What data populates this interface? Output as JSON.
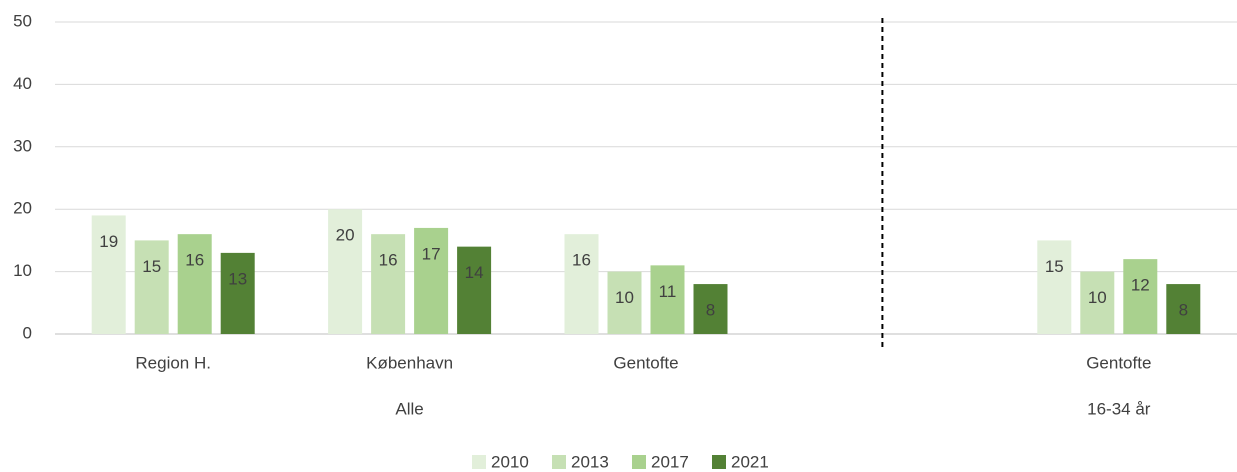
{
  "chart_data": {
    "type": "bar",
    "categories": [
      "Region H.",
      "København",
      "Gentofte",
      null,
      "Gentofte"
    ],
    "groups": [
      {
        "label": "Alle",
        "size": 3
      },
      {
        "label": null,
        "size": 1
      },
      {
        "label": "16-34 år",
        "size": 1
      }
    ],
    "series": [
      {
        "name": "2010",
        "color": "#e2efda",
        "values": [
          19,
          20,
          16,
          null,
          15
        ]
      },
      {
        "name": "2013",
        "color": "#c6e0b4",
        "values": [
          15,
          16,
          10,
          null,
          10
        ]
      },
      {
        "name": "2017",
        "color": "#a9d18e",
        "values": [
          16,
          17,
          11,
          null,
          12
        ]
      },
      {
        "name": "2021",
        "color": "#538135",
        "values": [
          13,
          14,
          8,
          null,
          8
        ]
      }
    ],
    "ylim": [
      0,
      50
    ],
    "yticks": [
      0,
      10,
      20,
      30,
      40,
      50
    ],
    "grid": true,
    "legend": "bottom",
    "data_labels": true
  }
}
